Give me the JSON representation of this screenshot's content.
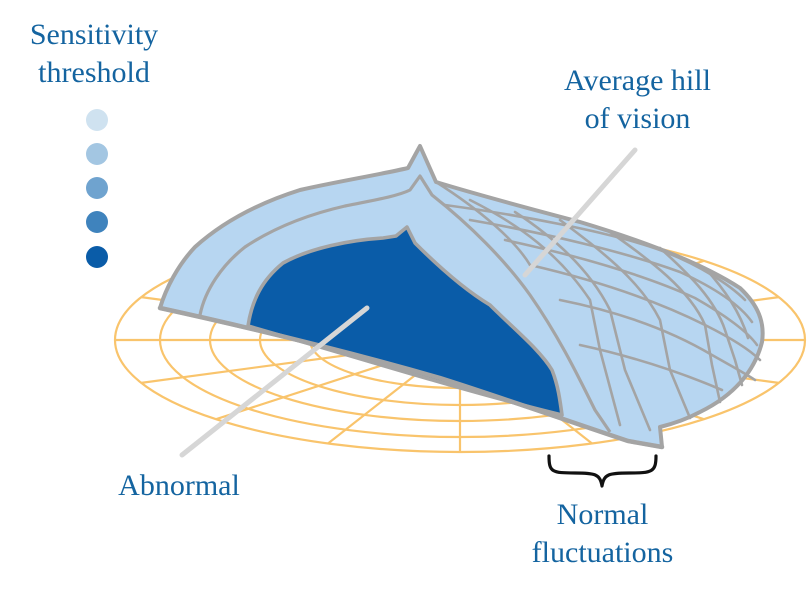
{
  "legend": {
    "title_line1": "Sensitivity",
    "title_line2": "threshold",
    "levels": [
      {
        "name": "level-1",
        "color": "#cfe2f0"
      },
      {
        "name": "level-2",
        "color": "#a3c6e2"
      },
      {
        "name": "level-3",
        "color": "#6fa3cf"
      },
      {
        "name": "level-4",
        "color": "#3f83bd"
      },
      {
        "name": "level-5",
        "color": "#0a5ca8"
      }
    ]
  },
  "labels": {
    "hill_line1": "Average hill",
    "hill_line2": "of vision",
    "abnormal": "Abnormal",
    "normal_line1": "Normal",
    "normal_line2": "fluctuations"
  },
  "colors": {
    "text": "#1464a0",
    "grid": "#f9c46c",
    "hill_fill": "#b7d6f1",
    "hill_outline": "#a4a4a4",
    "abnormal_fill": "#0a5ca8",
    "pointer_line": "#d6d6d6",
    "brace": "#111111"
  }
}
